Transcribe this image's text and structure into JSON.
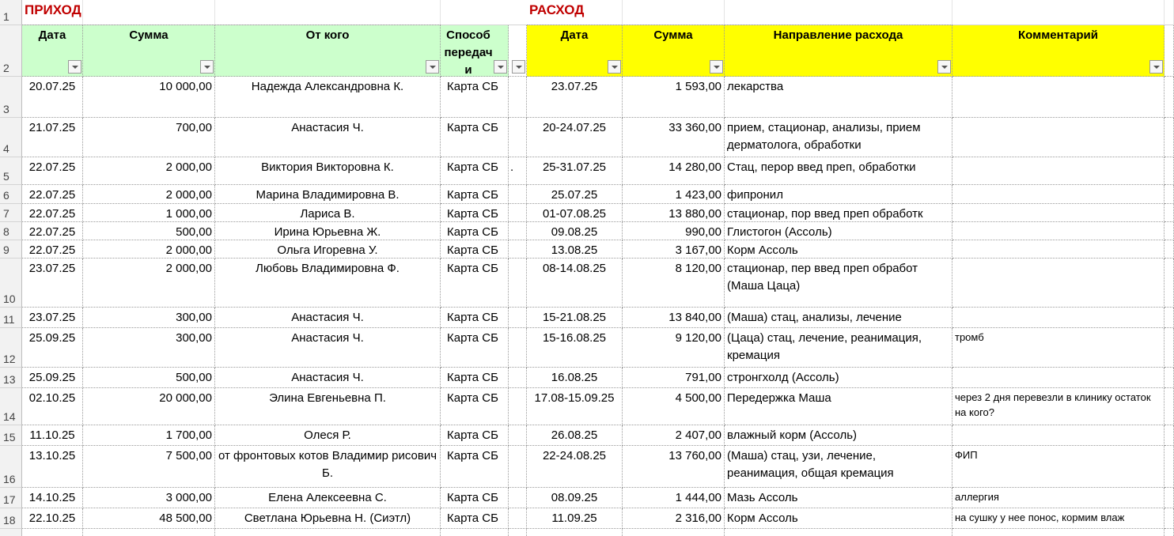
{
  "header": {
    "income_title": "ПРИХОД",
    "expense_title": "РАСХОД"
  },
  "row_numbers": [
    1,
    2,
    3,
    4,
    5,
    6,
    7,
    8,
    9,
    10,
    11,
    12,
    13,
    14,
    15,
    16,
    17,
    18
  ],
  "income": {
    "columns": [
      "Дата",
      "Сумма",
      "От кого",
      "Способ передачи"
    ],
    "rows": [
      {
        "date": "20.07.25",
        "amount": "10 000,00",
        "from": "Надежда Александровна К.",
        "method": "Карта СБ"
      },
      {
        "date": "21.07.25",
        "amount": "700,00",
        "from": "Анастасия Ч.",
        "method": "Карта СБ"
      },
      {
        "date": "22.07.25",
        "amount": "2 000,00",
        "from": "Виктория Викторовна К.",
        "method": "Карта СБ",
        "marker": "."
      },
      {
        "date": "22.07.25",
        "amount": "2 000,00",
        "from": "Марина Владимировна В.",
        "method": "Карта СБ"
      },
      {
        "date": "22.07.25",
        "amount": "1 000,00",
        "from": "Лариса В.",
        "method": "Карта СБ"
      },
      {
        "date": "22.07.25",
        "amount": "500,00",
        "from": "Ирина Юрьевна Ж.",
        "method": "Карта СБ"
      },
      {
        "date": "22.07.25",
        "amount": "2 000,00",
        "from": "Ольга Игоревна У.",
        "method": "Карта СБ"
      },
      {
        "date": "23.07.25",
        "amount": "2 000,00",
        "from": "Любовь Владимировна Ф.",
        "method": "Карта СБ"
      },
      {
        "date": "23.07.25",
        "amount": "300,00",
        "from": "Анастасия Ч.",
        "method": "Карта СБ"
      },
      {
        "date": "25.09.25",
        "amount": "300,00",
        "from": "Анастасия Ч.",
        "method": "Карта СБ"
      },
      {
        "date": "25.09.25",
        "amount": "500,00",
        "from": "Анастасия Ч.",
        "method": "Карта СБ"
      },
      {
        "date": "02.10.25",
        "amount": "20 000,00",
        "from": "Элина Евгеньевна П.",
        "method": "Карта СБ"
      },
      {
        "date": "11.10.25",
        "amount": "1 700,00",
        "from": "Олеся Р.",
        "method": "Карта СБ"
      },
      {
        "date": "13.10.25",
        "amount": "7 500,00",
        "from": "от фронтовых котов Владимир рисович Б.",
        "method": "Карта СБ"
      },
      {
        "date": "14.10.25",
        "amount": "3 000,00",
        "from": "Елена Алексеевна С.",
        "method": "Карта СБ"
      },
      {
        "date": "22.10.25",
        "amount": "48 500,00",
        "from": "Светлана Юрьевна Н. (Сиэтл)",
        "method": "Карта СБ"
      }
    ]
  },
  "expense": {
    "columns": [
      "Дата",
      "Сумма",
      "Направление расхода",
      "Комментарий"
    ],
    "rows": [
      {
        "date": "23.07.25",
        "amount": "1 593,00",
        "direction": "лекарства"
      },
      {
        "date": "20-24.07.25",
        "amount": "33 360,00",
        "direction": "прием, стационар, анализы, прием дерматолога, обработки"
      },
      {
        "date": "25-31.07.25",
        "amount": "14 280,00",
        "direction": "Стац, перор введ преп, обработки"
      },
      {
        "date": "25.07.25",
        "amount": "1 423,00",
        "direction": "фипронил"
      },
      {
        "date": "01-07.08.25",
        "amount": "13 880,00",
        "direction": "стационар, пор введ преп обработк"
      },
      {
        "date": "09.08.25",
        "amount": "990,00",
        "direction": "Глистогон (Ассоль)"
      },
      {
        "date": "13.08.25",
        "amount": "3 167,00",
        "direction": "Корм Ассоль"
      },
      {
        "date": "08-14.08.25",
        "amount": "8 120,00",
        "direction": "стационар, пер введ преп обработ (Маша Цаца)"
      },
      {
        "date": "15-21.08.25",
        "amount": "13 840,00",
        "direction": "(Маша) стац, анализы, лечение"
      },
      {
        "date": "15-16.08.25",
        "amount": "9 120,00",
        "direction": "(Цаца) стац, лечение, реанимация, кремация",
        "comment": "тромб"
      },
      {
        "date": "16.08.25",
        "amount": "791,00",
        "direction": "стронгхолд (Ассоль)"
      },
      {
        "date": "17.08-15.09.25",
        "amount": "4 500,00",
        "direction": "Передержка Маша",
        "comment": "через 2 дня перевезли в клинику остаток на кого?"
      },
      {
        "date": "26.08.25",
        "amount": "2 407,00",
        "direction": "влажный корм (Ассоль)"
      },
      {
        "date": "22-24.08.25",
        "amount": "13 760,00",
        "direction": "(Маша) стац, узи, лечение, реанимация, общая кремация",
        "comment": "ФИП"
      },
      {
        "date": "08.09.25",
        "amount": "1 444,00",
        "direction": "Мазь Ассоль",
        "comment": "аллергия"
      },
      {
        "date": "11.09.25",
        "amount": "2 316,00",
        "direction": "Корм Ассоль",
        "comment": "на сушку у нее понос, кормим влаж"
      }
    ]
  }
}
